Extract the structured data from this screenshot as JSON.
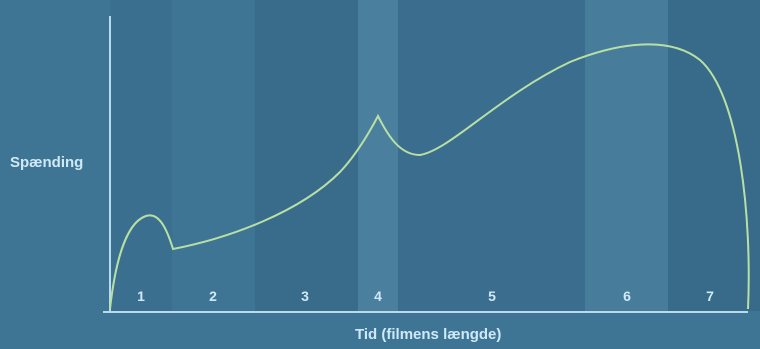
{
  "axes": {
    "y_label": "Spænding",
    "x_label": "Tid (filmens længde)"
  },
  "colors": {
    "background": "#3f7594",
    "axis": "#b9dbee",
    "curve": "#b8e0a4",
    "segment_label": "#cfe9f7",
    "band_shades": [
      "#3b6f8f",
      "#3f7594",
      "#396b8a",
      "#4a7f9e",
      "#3b6e8e",
      "#477c9b",
      "#386a89"
    ]
  },
  "segments": [
    {
      "label": "1"
    },
    {
      "label": "2"
    },
    {
      "label": "3"
    },
    {
      "label": "4"
    },
    {
      "label": "5"
    },
    {
      "label": "6"
    },
    {
      "label": "7"
    }
  ]
}
